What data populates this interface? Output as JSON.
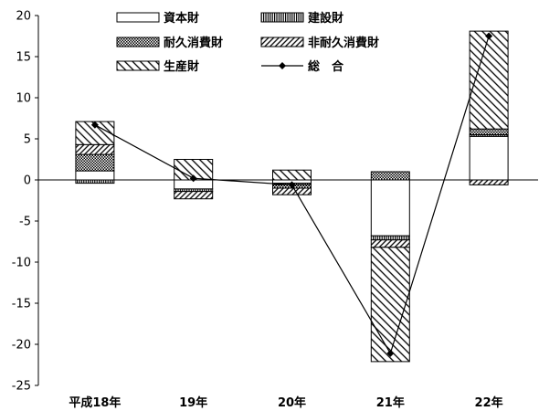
{
  "chart_data": {
    "type": "bar",
    "stacked": true,
    "categories": [
      "平成18年",
      "19年",
      "20年",
      "21年",
      "22年"
    ],
    "series": [
      {
        "name": "資本財",
        "type": "bar",
        "values": [
          1.1,
          -1.1,
          -0.4,
          -6.8,
          5.3
        ]
      },
      {
        "name": "建設財",
        "type": "bar",
        "values": [
          -0.4,
          -0.3,
          -0.2,
          -0.5,
          0.2
        ]
      },
      {
        "name": "耐久消費財",
        "type": "bar",
        "values": [
          2.0,
          0.0,
          -0.4,
          1.0,
          0.7
        ]
      },
      {
        "name": "非耐久消費財",
        "type": "bar",
        "values": [
          1.2,
          -0.9,
          -0.8,
          -0.9,
          -0.6
        ]
      },
      {
        "name": "生産財",
        "type": "bar",
        "values": [
          2.8,
          2.5,
          1.2,
          -13.9,
          11.9
        ]
      },
      {
        "name": "総　合",
        "type": "line",
        "marker": "diamond",
        "values": [
          6.7,
          0.2,
          -0.6,
          -21.1,
          17.5
        ]
      }
    ],
    "ylim": [
      -25,
      20
    ],
    "yticks": [
      20,
      15,
      10,
      5,
      0,
      -5,
      -10,
      -15,
      -20,
      -25
    ],
    "legend": "top",
    "grid": false
  }
}
